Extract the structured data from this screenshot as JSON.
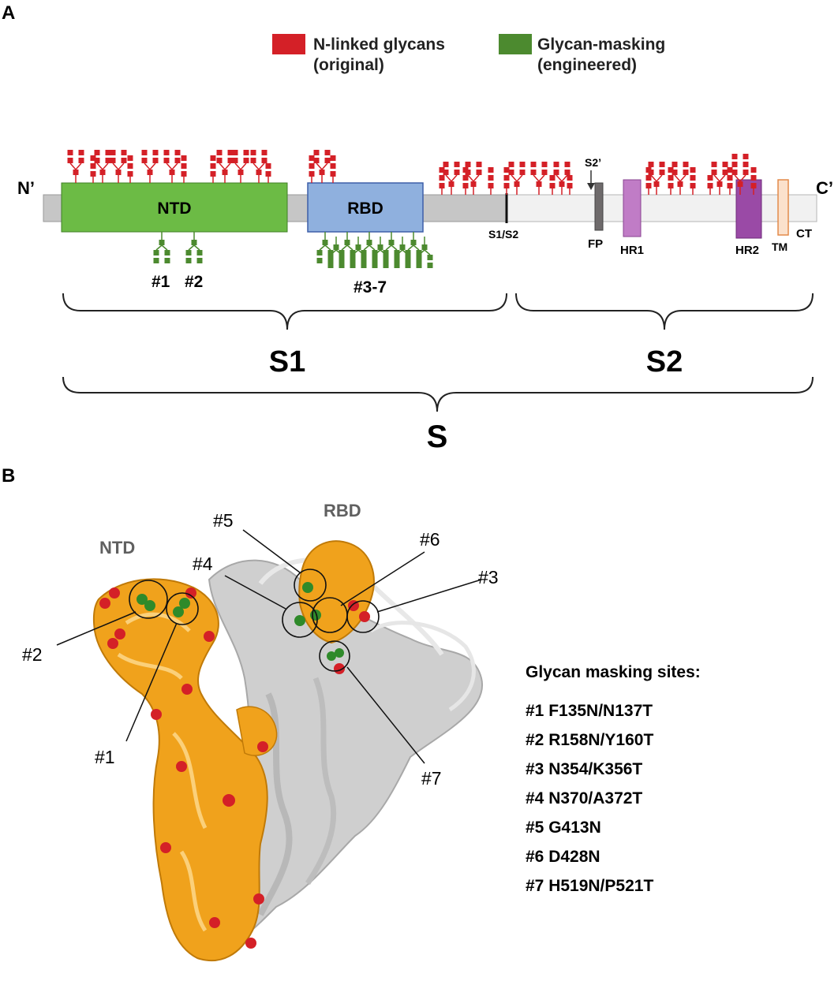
{
  "panel_a": {
    "label": "A",
    "legend": [
      {
        "line1": "N-linked glycans",
        "line2": "(original)",
        "color": "#d42027"
      },
      {
        "line1": "Glycan-masking",
        "line2": "(engineered)",
        "color": "#4c8a2f"
      }
    ],
    "n_term": "N’",
    "c_term": "C’",
    "domains": {
      "ntd": {
        "label": "NTD",
        "color": "#6cbb45"
      },
      "rbd": {
        "label": "RBD",
        "color": "#8fb0de"
      },
      "fp": {
        "label": "FP",
        "color": "#6e6a6b"
      },
      "hr1": {
        "label": "HR1",
        "color": "#c07cc6"
      },
      "hr2": {
        "label": "HR2",
        "color": "#9a4aa6"
      },
      "tm": {
        "label": "TM",
        "color": "#fbe1cc"
      },
      "ct": {
        "label": "CT"
      }
    },
    "cleavage": {
      "s1s2": "S1/S2",
      "s2prime": "S2’"
    },
    "engineered_labels": {
      "site1": "#1",
      "site2": "#2",
      "site3_7": "#3-7"
    },
    "brackets": {
      "s1": "S1",
      "s2": "S2",
      "s": "S"
    },
    "colors": {
      "s1_body": "#c6c6c6",
      "s2_body": "#f1f1f1",
      "original_glycan": "#d42027",
      "masking_glycan": "#4c8a2f"
    }
  },
  "panel_b": {
    "label": "B",
    "structure_labels": {
      "ntd": "NTD",
      "rbd": "RBD"
    },
    "callouts": {
      "c1": "#1",
      "c2": "#2",
      "c3": "#3",
      "c4": "#4",
      "c5": "#5",
      "c6": "#6",
      "c7": "#7"
    },
    "sites_title": "Glycan masking sites:",
    "sites": [
      "#1 F135N/N137T",
      "#2 R158N/Y160T",
      "#3 N354/K356T",
      "#4 N370/A372T",
      "#5 G413N",
      "#6 D428N",
      "#7 H519N/P521T"
    ],
    "colors": {
      "subunit_highlight": "#f0a21c",
      "other_subunits": "#cfcfcf"
    }
  }
}
